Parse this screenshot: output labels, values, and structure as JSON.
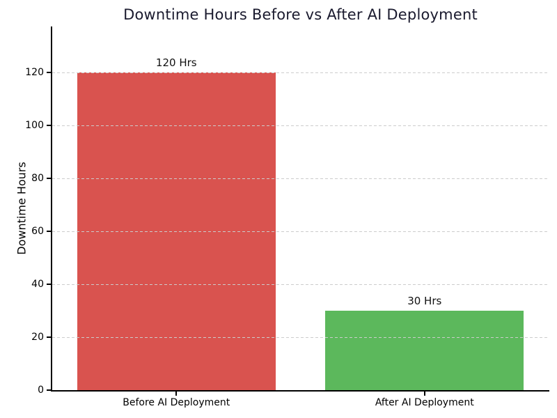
{
  "chart_data": {
    "type": "bar",
    "title": "Downtime Hours Before vs After AI Deployment",
    "ylabel": "Downtime Hours",
    "xlabel": "",
    "categories": [
      "Before AI Deployment",
      "After AI Deployment"
    ],
    "values": [
      120,
      30
    ],
    "bar_labels": [
      "120 Hrs",
      "30 Hrs"
    ],
    "bar_colors": [
      "#d9534f",
      "#5cb85c"
    ],
    "yticks": [
      0,
      20,
      40,
      60,
      80,
      100,
      120
    ],
    "ylim": [
      0,
      137.5
    ],
    "grid": "horizontal-dashed",
    "grid_over_bars": true,
    "legend": "none",
    "colors": {
      "title": "#1a1a2e",
      "tick_labels": "#000000",
      "value_labels": "#111111",
      "gridline": "#cccccc",
      "axis": "#000000",
      "background": "#ffffff"
    }
  }
}
